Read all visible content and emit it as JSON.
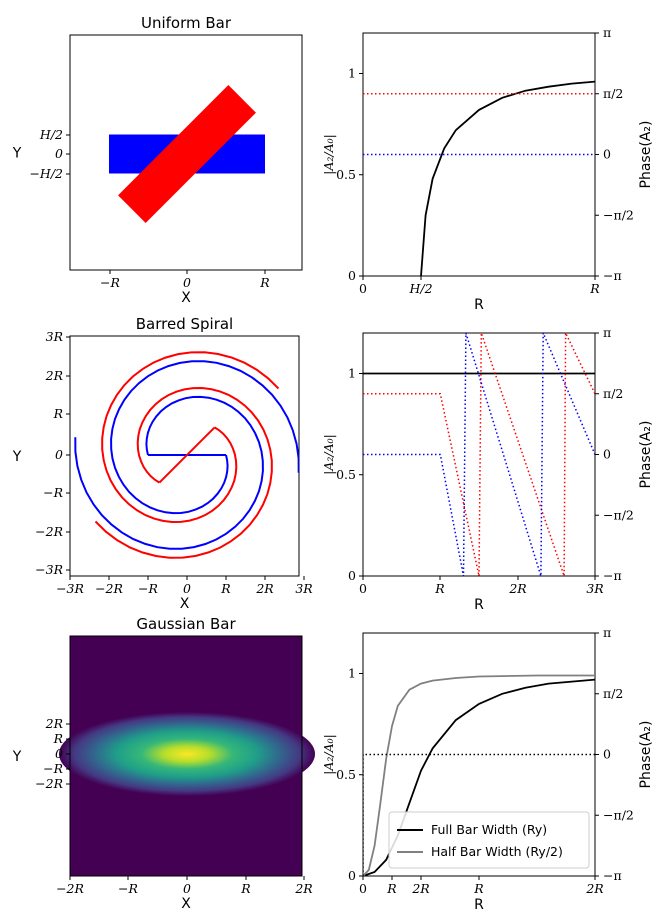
{
  "chart_data": [
    {
      "id": "uniform-bar-image",
      "type": "diagram",
      "title": "Uniform Bar",
      "xlabel": "X",
      "ylabel": "Y",
      "xticks": [
        "−R_b",
        "0",
        "R_b"
      ],
      "yticks": [
        "H/2",
        "0",
        "−H/2"
      ],
      "shapes": [
        {
          "name": "bar",
          "color": "#0000ff",
          "half_length": 1.0,
          "half_height": 0.25,
          "angle_deg": 0
        },
        {
          "name": "rotated bar",
          "color": "#ff0000",
          "half_length": 1.0,
          "half_height": 0.25,
          "angle_deg": 45
        }
      ]
    },
    {
      "id": "uniform-bar-amplitude",
      "type": "line",
      "xlabel": "R",
      "ylabel": "|A₂/A₀|",
      "ylabel_right": "Phase(A₂)",
      "xticks": [
        "0",
        "H/2",
        "R_b"
      ],
      "yticks_left": [
        "0",
        "0.5",
        "1"
      ],
      "yticks_right": [
        "−π",
        "−π/2",
        "0",
        "π/2",
        "π"
      ],
      "xlim": [
        0,
        1.0
      ],
      "ylim": [
        0,
        1.2
      ],
      "series": [
        {
          "color": "#000000",
          "style": "solid",
          "x": [
            0.25,
            0.27,
            0.3,
            0.35,
            0.4,
            0.5,
            0.6,
            0.7,
            0.8,
            0.9,
            1.0
          ],
          "y": [
            0.0,
            0.3,
            0.48,
            0.63,
            0.72,
            0.82,
            0.88,
            0.915,
            0.935,
            0.95,
            0.96
          ]
        },
        {
          "color": "#ff0000",
          "style": "dotted",
          "x": [
            0,
            1.0
          ],
          "y": [
            0.9,
            0.9
          ]
        },
        {
          "color": "#0000ff",
          "style": "dotted",
          "x": [
            0,
            1.0
          ],
          "y": [
            0.6,
            0.6
          ]
        }
      ]
    },
    {
      "id": "barred-spiral-image",
      "type": "diagram",
      "title": "Barred Spiral",
      "xlabel": "X",
      "ylabel": "Y",
      "xticks": [
        "−3R_b",
        "−2R_b",
        "−R_b",
        "0",
        "R_b",
        "2R_b",
        "3R_b"
      ],
      "yticks": [
        "3R_b",
        "2R_b",
        "R_b",
        "0",
        "−R_b",
        "−2R_b",
        "−3R_b"
      ],
      "shapes": [
        {
          "name": "bar with spiral arms",
          "color": "#0000ff",
          "angle_deg": 0
        },
        {
          "name": "rotated bar with spiral arms",
          "color": "#ff0000",
          "angle_deg": 45
        }
      ]
    },
    {
      "id": "barred-spiral-amplitude",
      "type": "line",
      "xlabel": "R",
      "ylabel": "|A₂/A₀|",
      "ylabel_right": "Phase(A₂)",
      "xticks": [
        "0",
        "R_b",
        "2R_b",
        "3R_b"
      ],
      "yticks_left": [
        "0",
        "0.5",
        "1"
      ],
      "yticks_right": [
        "−π",
        "−π/2",
        "0",
        "π/2",
        "π"
      ],
      "xlim": [
        0,
        3.0
      ],
      "ylim": [
        0,
        1.2
      ],
      "series": [
        {
          "color": "#000000",
          "style": "solid",
          "x": [
            0,
            3.0
          ],
          "y": [
            1.0,
            1.0
          ]
        },
        {
          "color": "#ff0000",
          "style": "dotted",
          "x": [
            0,
            1.0,
            1.5,
            1.53,
            2.6,
            2.62,
            3.0
          ],
          "y": [
            0.9,
            0.9,
            0.0,
            1.2,
            0.0,
            1.2,
            0.9
          ]
        },
        {
          "color": "#0000ff",
          "style": "dotted",
          "x": [
            0,
            1.0,
            1.3,
            1.33,
            2.3,
            2.33,
            3.0
          ],
          "y": [
            0.6,
            0.6,
            0.0,
            1.2,
            0.0,
            1.2,
            0.6
          ]
        }
      ]
    },
    {
      "id": "gaussian-bar-image",
      "type": "heatmap",
      "title": "Gaussian Bar",
      "xlabel": "X",
      "ylabel": "Y",
      "xticks": [
        "−2R_x",
        "−R_x",
        "0",
        "R_x",
        "2R_x"
      ],
      "yticks": [
        "2R_y",
        "R_y",
        "0",
        "−R_y",
        "−2R_y"
      ],
      "colormap": "viridis"
    },
    {
      "id": "gaussian-bar-amplitude",
      "type": "line",
      "xlabel": "R",
      "ylabel": "|A₂/A₀|",
      "ylabel_right": "Phase(A₂)",
      "xticks": [
        "0",
        "R_y",
        "2R_y",
        "R_x",
        "2R_x"
      ],
      "yticks_left": [
        "0",
        "0.5",
        "1"
      ],
      "yticks_right": [
        "−π",
        "−π/2",
        "0",
        "π/2",
        "π"
      ],
      "xlim": [
        0,
        2.0
      ],
      "ylim": [
        0,
        1.2
      ],
      "legend_position": "bottom-right",
      "series": [
        {
          "name": "Full Bar Width (R_y)",
          "color": "#000000",
          "style": "solid",
          "x": [
            0,
            0.1,
            0.2,
            0.3,
            0.4,
            0.5,
            0.6,
            0.8,
            1.0,
            1.2,
            1.4,
            1.6,
            1.8,
            2.0
          ],
          "y": [
            0.0,
            0.02,
            0.08,
            0.2,
            0.36,
            0.52,
            0.63,
            0.77,
            0.85,
            0.9,
            0.93,
            0.95,
            0.96,
            0.97
          ]
        },
        {
          "name": "Half Bar Width (R_y/2)",
          "color": "#808080",
          "style": "solid",
          "x": [
            0,
            0.05,
            0.1,
            0.15,
            0.2,
            0.25,
            0.3,
            0.4,
            0.5,
            0.6,
            0.8,
            1.0,
            1.5,
            2.0
          ],
          "y": [
            0.0,
            0.03,
            0.15,
            0.36,
            0.58,
            0.74,
            0.84,
            0.92,
            0.95,
            0.965,
            0.978,
            0.985,
            0.99,
            0.99
          ]
        },
        {
          "color": "#000000",
          "style": "dotted",
          "x": [
            0,
            0,
            2.0
          ],
          "y": [
            0.0,
            0.6,
            0.6
          ]
        }
      ]
    }
  ]
}
